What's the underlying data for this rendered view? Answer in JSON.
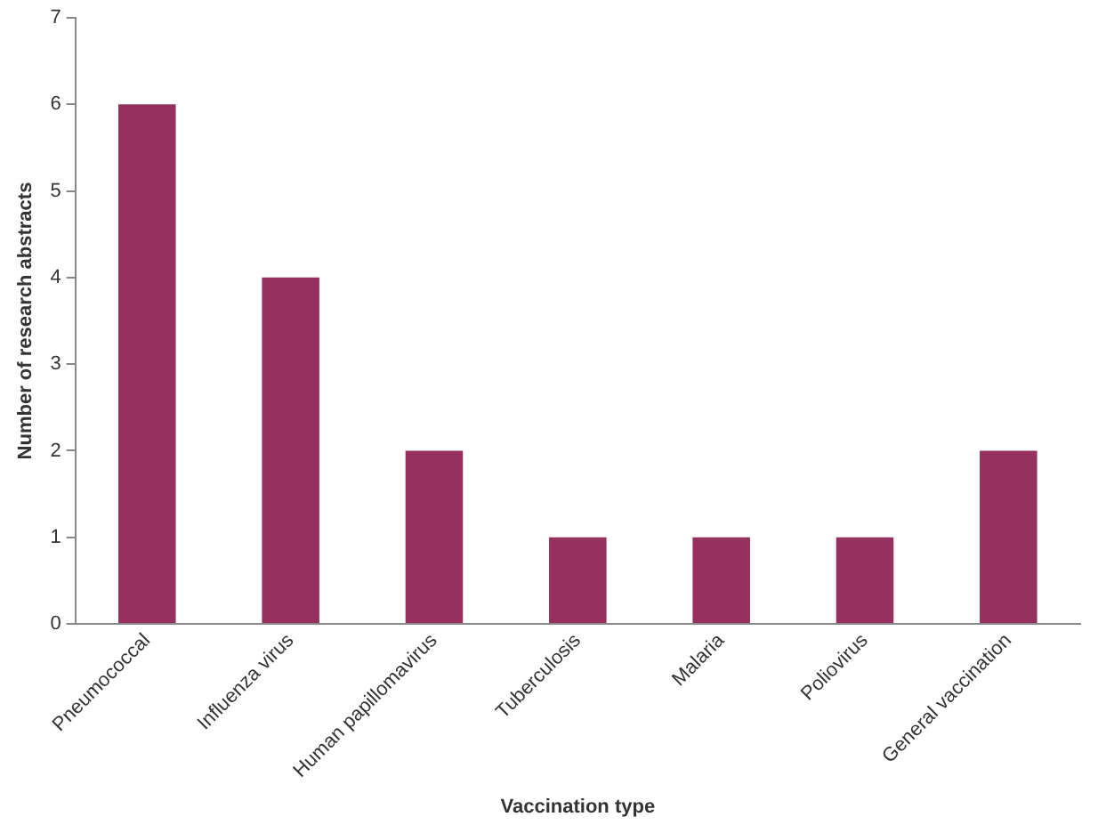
{
  "chart_data": {
    "type": "bar",
    "xlabel": "Vaccination type",
    "ylabel": "Number of research abstracts",
    "categories": [
      "Pneumococcal",
      "Influenza virus",
      "Human papillomavirus",
      "Tuberculosis",
      "Malaria",
      "Poliovirus",
      "General vaccination"
    ],
    "values": [
      6,
      4,
      2,
      1,
      1,
      1,
      2
    ],
    "color": "#96305e",
    "ylim": [
      0,
      7
    ],
    "yticks": [
      0,
      1,
      2,
      3,
      4,
      5,
      6,
      7
    ],
    "grid": false,
    "legend": false
  }
}
